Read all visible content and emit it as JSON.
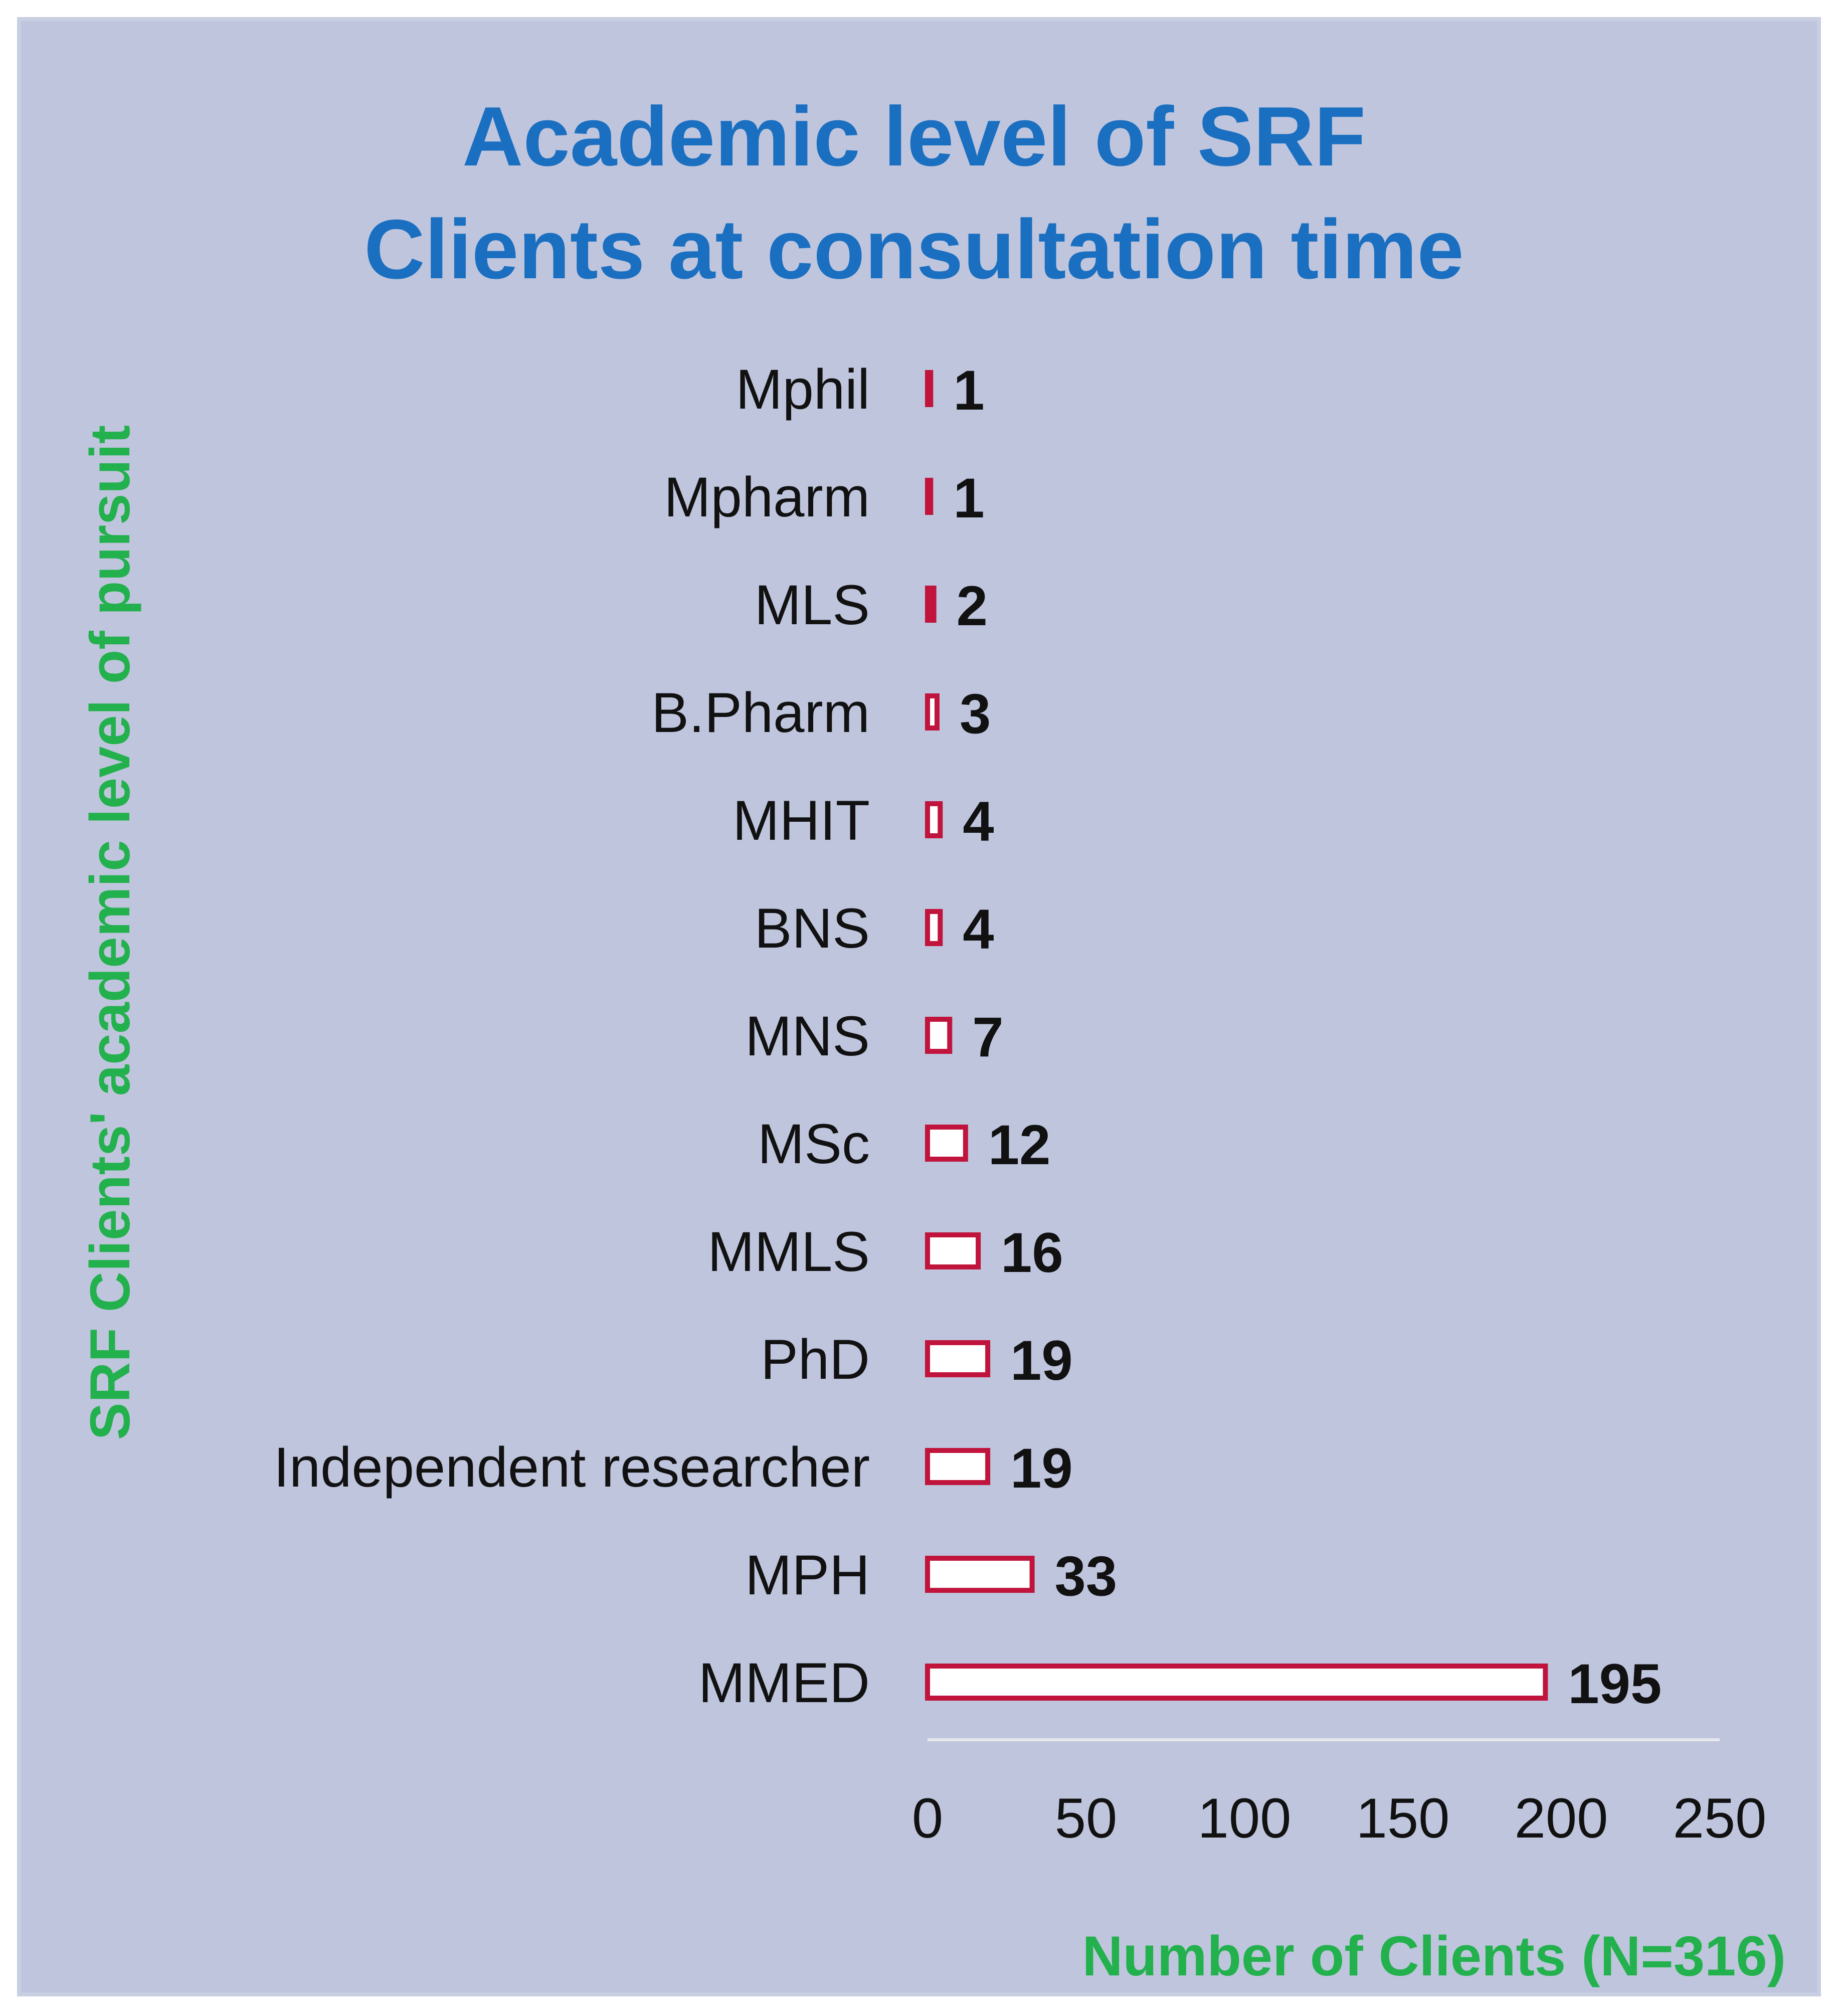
{
  "chart_data": {
    "type": "bar",
    "orientation": "horizontal",
    "title_lines": [
      "Academic level of SRF",
      "Clients at consultation time"
    ],
    "xlabel": "Number of Clients (N=316)",
    "ylabel": "SRF Clients' academic level of pursuit",
    "categories": [
      "Mphil",
      "Mpharm",
      "MLS",
      "B.Pharm",
      "MHIT",
      "BNS",
      "MNS",
      "MSc",
      "MMLS",
      "PhD",
      "Independent researcher",
      "MPH",
      "MMED"
    ],
    "values": [
      1,
      1,
      2,
      3,
      4,
      4,
      7,
      12,
      16,
      19,
      19,
      33,
      195
    ],
    "data_labels": [
      "1",
      "1",
      "2",
      "3",
      "4",
      "4",
      "7",
      "12",
      "16",
      "19",
      "19",
      "33",
      "195"
    ],
    "xlim": [
      0,
      250
    ],
    "xticks": [
      "0",
      "50",
      "100",
      "150",
      "200",
      "250"
    ],
    "grid": false,
    "legend": "none",
    "colors": {
      "background": "#bec5dd",
      "frame": "#c9cfe2",
      "title": "#1b6fc0",
      "axis_title": "#22b14c",
      "bar_stroke": "#c0143c",
      "bar_fill": "#ffffff",
      "text": "#111111",
      "axis_line": "#e6e8ee"
    }
  }
}
